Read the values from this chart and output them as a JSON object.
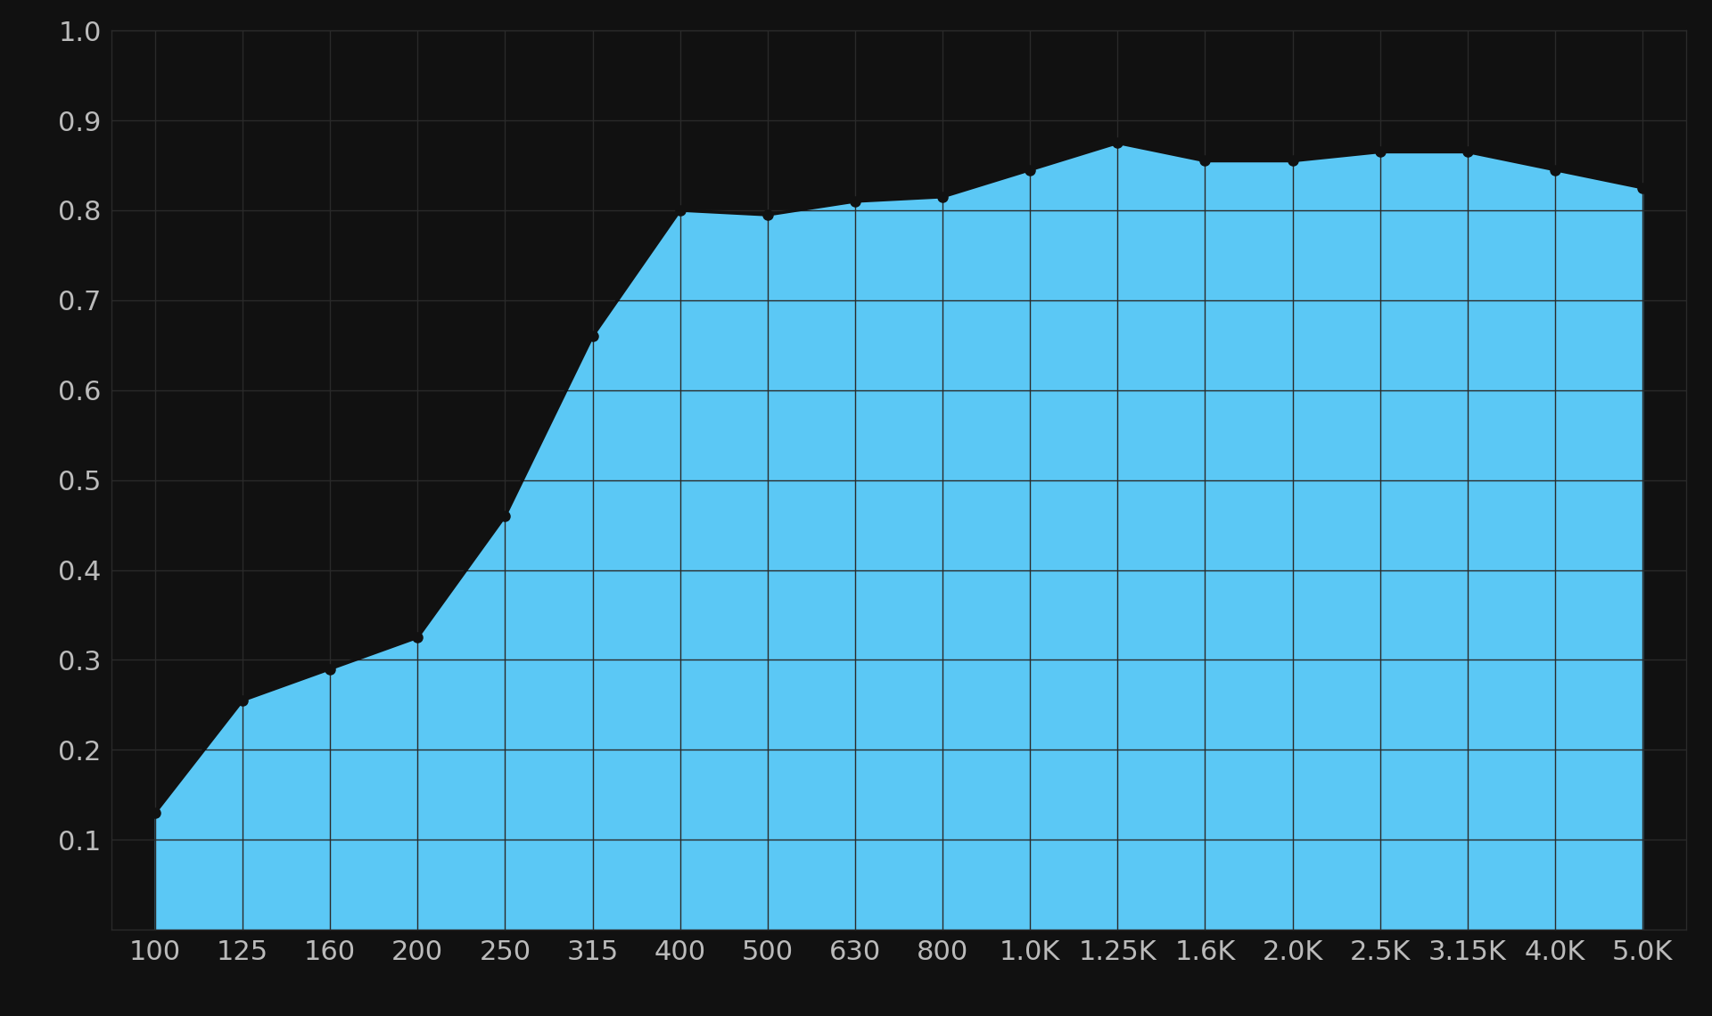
{
  "x_labels": [
    "100",
    "125",
    "160",
    "200",
    "250",
    "315",
    "400",
    "500",
    "630",
    "800",
    "1.0K",
    "1.25K",
    "1.6K",
    "2.0K",
    "2.5K",
    "3.15K",
    "4.0K",
    "5.0K"
  ],
  "x_values": [
    100,
    125,
    160,
    200,
    250,
    315,
    400,
    500,
    630,
    800,
    1000,
    1250,
    1600,
    2000,
    2500,
    3150,
    4000,
    5000
  ],
  "y_values": [
    0.13,
    0.255,
    0.29,
    0.325,
    0.46,
    0.66,
    0.8,
    0.795,
    0.81,
    0.815,
    0.845,
    0.875,
    0.855,
    0.855,
    0.865,
    0.865,
    0.845,
    0.825
  ],
  "fill_color": "#5BC8F5",
  "line_color": "#111111",
  "marker_color": "#111111",
  "background_color": "#111111",
  "grid_color": "#2a2a2a",
  "text_color": "#bbbbbb",
  "ylim": [
    0.0,
    1.0
  ],
  "yticks": [
    0.1,
    0.2,
    0.3,
    0.4,
    0.5,
    0.6,
    0.7,
    0.8,
    0.9,
    1.0
  ],
  "marker_size": 8,
  "line_width": 2.5
}
